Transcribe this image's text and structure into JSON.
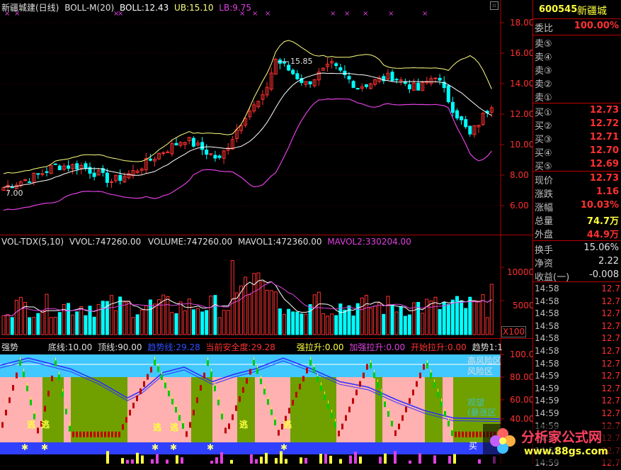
{
  "main_header": {
    "name": "新疆城建(日线)",
    "indicator": "BOLL-M(20)",
    "boll": "BOLL:12.43",
    "ub": "UB:15.10",
    "lb": "LB:9.75"
  },
  "price_axis": [
    "18.00",
    "16.00",
    "14.00",
    "12.00",
    "10.00",
    "8.00",
    "6.00"
  ],
  "price_marks": {
    "high": "15.85",
    "low": "7.00"
  },
  "vol_header": {
    "name": "VOL-TDX(5,10)",
    "vvol": "VVOL:747260.00",
    "volume": "VOLUME:747260.00",
    "mavol1": "MAVOL1:472360.00",
    "mavol2": "MAVOL2:330204.00"
  },
  "vol_axis": [
    "10000",
    "5000"
  ],
  "vol_unit": "X100",
  "trend_header": {
    "name": "强势",
    "bottom": "底线:10.00",
    "top": "顶线:90.00",
    "trend_line": "趋势线:29.28",
    "safety": "当前安全度:29.28",
    "strong_pull": "强拉升:0.00",
    "boost_pull": "加强拉升:0.00",
    "start_pull": "开始拉升:0.00",
    "trend": "趋势1:1"
  },
  "trend_axis": [
    "100.0",
    "80.00",
    "60.00",
    "40.00"
  ],
  "trend_labels": {
    "high_risk": "高风险区",
    "risk": "风险区",
    "mid1": "观望",
    "mid2": "(暴涨区"
  },
  "escape_label": "逃",
  "buy_label": "买",
  "quote": {
    "code": "600545",
    "name": "新疆城",
    "weibi_label": "委比",
    "weibi_value": "100.00%",
    "sells": [
      {
        "label": "卖⑤",
        "value": ""
      },
      {
        "label": "卖④",
        "value": ""
      },
      {
        "label": "卖③",
        "value": ""
      },
      {
        "label": "卖②",
        "value": ""
      },
      {
        "label": "卖①",
        "value": ""
      }
    ],
    "buys": [
      {
        "label": "买①",
        "value": "12.73"
      },
      {
        "label": "买②",
        "value": "12.72"
      },
      {
        "label": "买③",
        "value": "12.71"
      },
      {
        "label": "买④",
        "value": "12.70"
      },
      {
        "label": "买⑤",
        "value": "12.69"
      }
    ],
    "stats": [
      {
        "label": "现价",
        "value": "12.73",
        "color": "#ff3030"
      },
      {
        "label": "涨跌",
        "value": "1.16",
        "color": "#ff3030"
      },
      {
        "label": "涨幅",
        "value": "10.03%",
        "color": "#ff3030"
      },
      {
        "label": "总量",
        "value": "74.7万",
        "color": "#ffff40"
      },
      {
        "label": "外盘",
        "value": "44.9万",
        "color": "#ff3030"
      }
    ],
    "stats2": [
      {
        "label": "换手",
        "value": "15.06%",
        "color": "#e0e0e0"
      },
      {
        "label": "净资",
        "value": "2.22",
        "color": "#e0e0e0"
      },
      {
        "label": "收益(一)",
        "value": "-0.008",
        "color": "#e0e0e0"
      }
    ],
    "ticks": [
      {
        "time": "14:58",
        "price": "12.7"
      },
      {
        "time": "14:58",
        "price": "12.7"
      },
      {
        "time": "14:58",
        "price": "12.7"
      },
      {
        "time": "14:58",
        "price": "12.7"
      },
      {
        "time": "14:58",
        "price": "12.7"
      },
      {
        "time": "14:58",
        "price": "12.7"
      },
      {
        "time": "14:58",
        "price": "12.7"
      },
      {
        "time": "14:59",
        "price": "12.7"
      },
      {
        "time": "14:59",
        "price": "12.7"
      },
      {
        "time": "14:59",
        "price": "12.7"
      },
      {
        "time": "14:59",
        "price": "12.7"
      },
      {
        "time": "14:59",
        "price": "12.7"
      },
      {
        "time": "14:59",
        "price": "12.7"
      },
      {
        "time": "14:59",
        "price": "12.7"
      },
      {
        "time": "14:59",
        "price": "12.7"
      }
    ]
  },
  "watermark": {
    "title": "分析家公式网",
    "url": "www.88gs.com"
  },
  "colors": {
    "up": "#ff3030",
    "down": "#00ffff",
    "boll": "#ffffff",
    "ub": "#ffff80",
    "lb": "#e040e0",
    "grid": "#b00000"
  }
}
